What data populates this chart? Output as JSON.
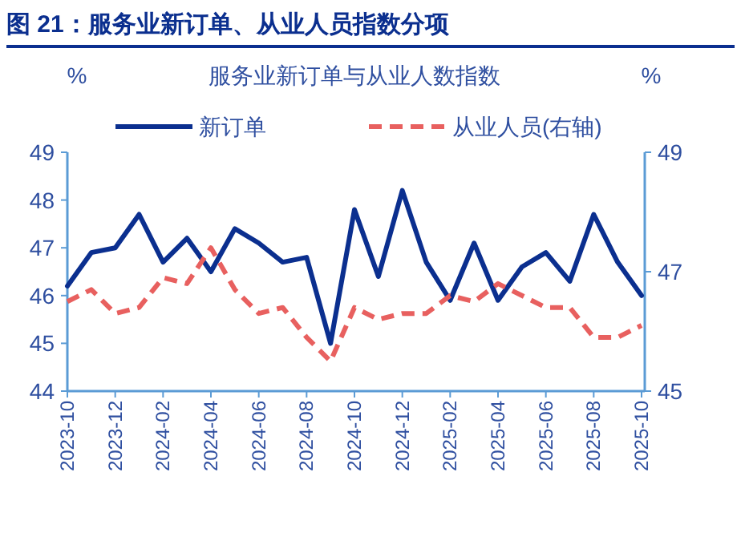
{
  "chart_data": {
    "type": "line",
    "title": "图 21：服务业新订单、从业人员指数分项",
    "subtitle": "服务业新订单与从业人数指数",
    "ylabel": "%",
    "y2label": "%",
    "categories": [
      "2023-10",
      null,
      "2023-12",
      null,
      "2024-02",
      null,
      "2024-04",
      null,
      "2024-06",
      null,
      "2024-08",
      null,
      "2024-10",
      null,
      "2024-12",
      null,
      "2025-02",
      null,
      "2025-04",
      null,
      "2025-06",
      null,
      "2025-08",
      null,
      "2025-10"
    ],
    "series": [
      {
        "name": "新订单",
        "color": "#0b2f8f",
        "line_style": "solid",
        "values": [
          46.2,
          46.9,
          47.0,
          47.7,
          46.7,
          47.2,
          46.5,
          47.4,
          47.1,
          46.7,
          46.8,
          45.0,
          47.8,
          46.4,
          48.2,
          46.7,
          45.9,
          47.1,
          45.9,
          46.6,
          46.9,
          46.3,
          47.7,
          46.7,
          46.0
        ]
      },
      {
        "name": "从业人员(右轴)",
        "color": "#e8605f",
        "line_style": "dashed",
        "axis": "y2",
        "values": [
          46.5,
          46.7,
          46.3,
          46.4,
          46.9,
          46.8,
          47.4,
          46.7,
          46.3,
          46.4,
          45.9,
          45.5,
          46.4,
          46.2,
          46.3,
          46.3,
          46.6,
          46.5,
          46.8,
          46.6,
          46.4,
          46.4,
          45.9,
          45.9,
          46.1
        ]
      }
    ],
    "ylim": [
      44,
      49
    ],
    "yticks": [
      44,
      45,
      46,
      47,
      48,
      49
    ],
    "y2lim": [
      45,
      49
    ],
    "y2ticks": [
      45,
      47,
      49
    ],
    "grid": false,
    "legend": "top",
    "marker": "none"
  }
}
